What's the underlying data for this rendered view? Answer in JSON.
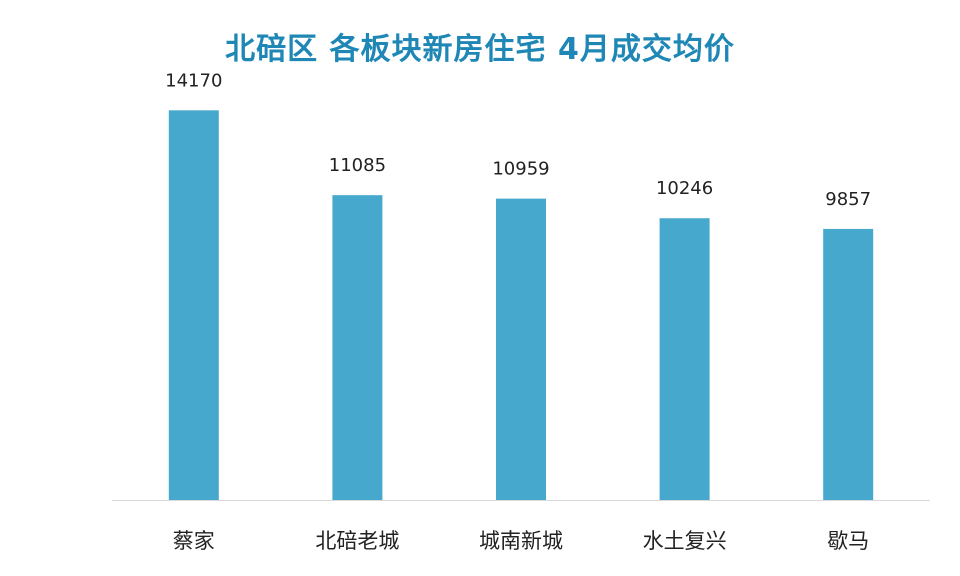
{
  "chart_data": {
    "type": "bar",
    "title": "北碚区 各板块新房住宅 4月成交均价",
    "categories": [
      "蔡家",
      "北碚老城",
      "城南新城",
      "水土复兴",
      "歇马"
    ],
    "values": [
      14170,
      11085,
      10959,
      10246,
      9857
    ],
    "value_labels": [
      "14170",
      "11085",
      "10959",
      "10246",
      "9857"
    ],
    "xlabel": "",
    "ylabel": "",
    "ylim": [
      0,
      16000
    ],
    "grid": false,
    "legend": "none"
  },
  "colors": {
    "bar": "#46A8CC",
    "title": "#1F87B5",
    "label": "#222222",
    "axis": "#D9D9D9"
  }
}
